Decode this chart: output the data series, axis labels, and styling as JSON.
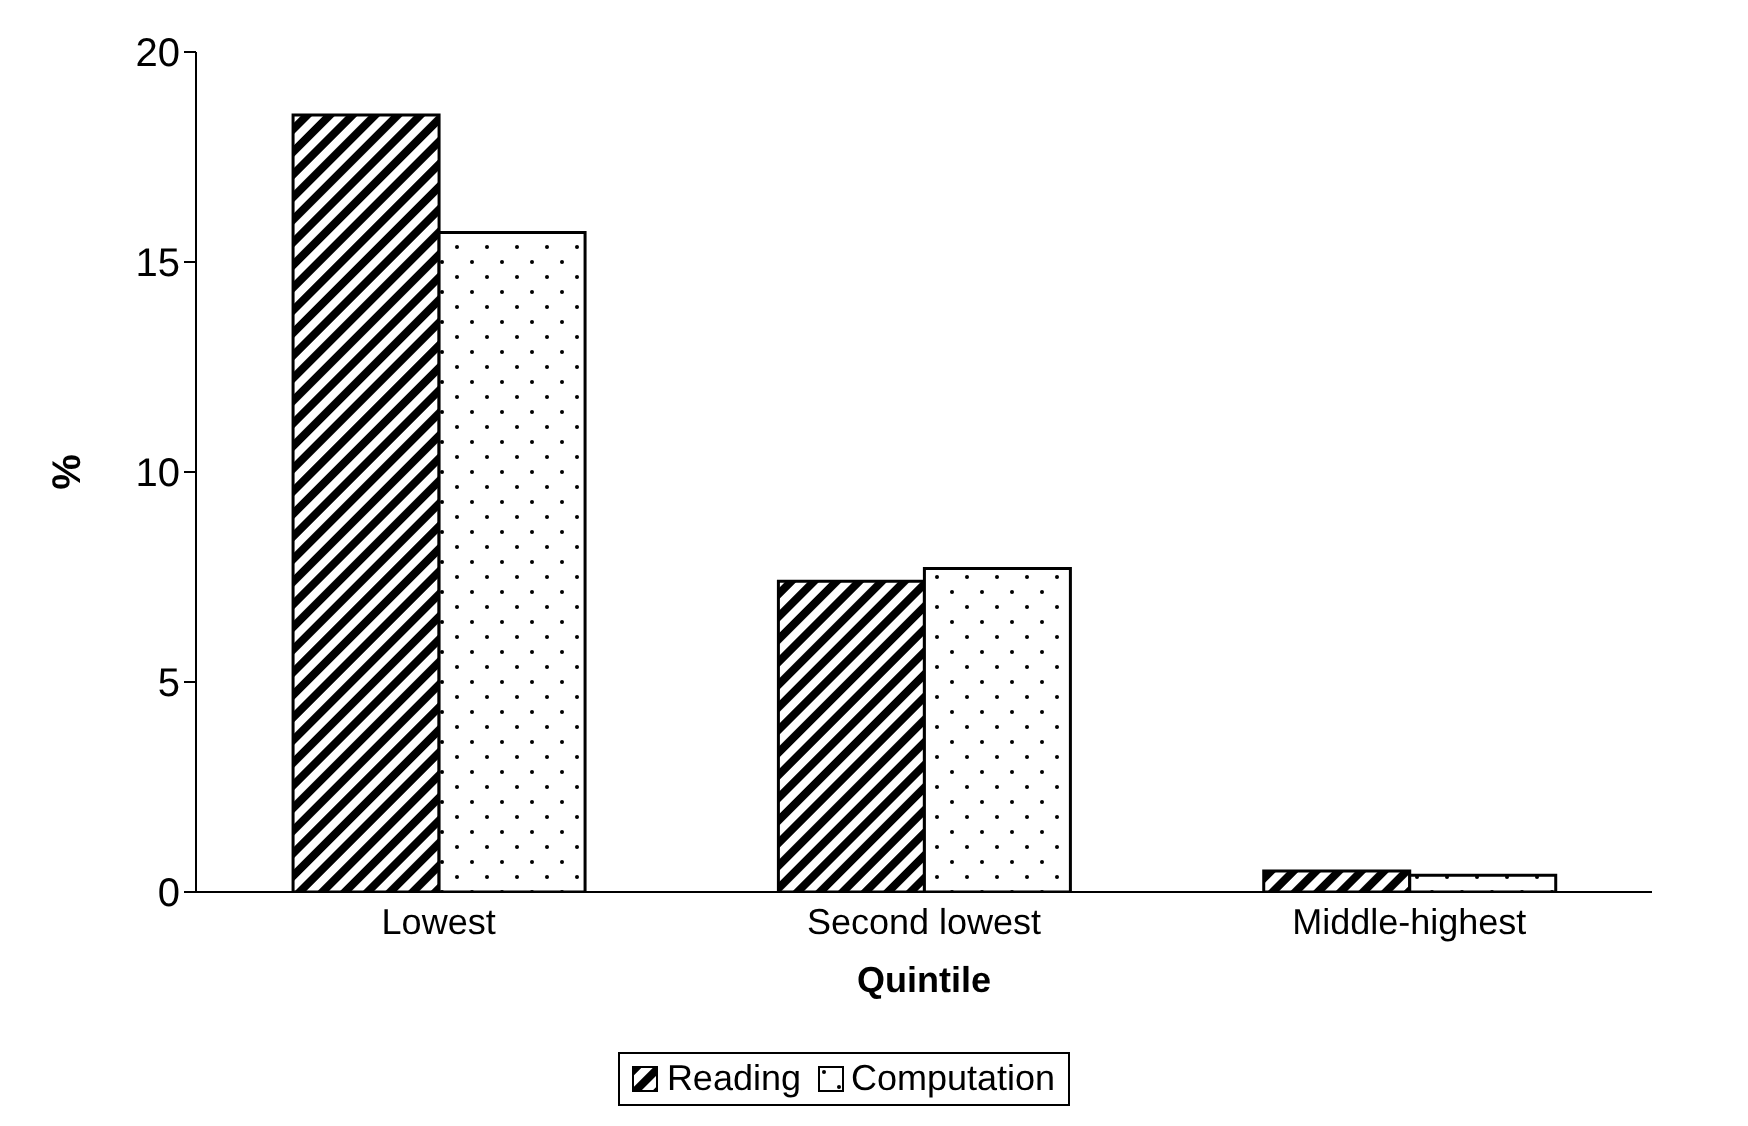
{
  "chart_data": {
    "type": "bar",
    "xlabel": "Quintile",
    "ylabel": "%",
    "categories": [
      "Lowest",
      "Second lowest",
      "Middle-highest"
    ],
    "series": [
      {
        "name": "Reading",
        "color": "#000000",
        "values": [
          18.5,
          7.4,
          0.5
        ]
      },
      {
        "name": "Computation",
        "color": "#000000",
        "values": [
          15.7,
          7.7,
          0.4
        ]
      }
    ],
    "ylim": [
      0,
      20
    ],
    "yticks": [
      0,
      5,
      10,
      15,
      20
    ],
    "grid": false,
    "legend": "bottom"
  }
}
